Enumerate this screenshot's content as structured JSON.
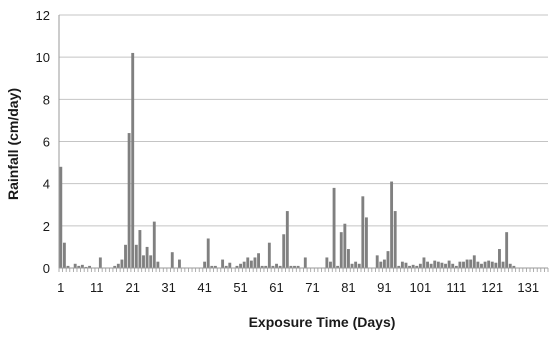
{
  "chart_data": {
    "type": "bar",
    "xlabel": "Exposure Time (Days)",
    "ylabel": "Rainfall (cm/day)",
    "ylim": [
      0,
      12
    ],
    "yticks": [
      0,
      2,
      4,
      6,
      8,
      10,
      12
    ],
    "xlim": [
      1,
      136
    ],
    "xticks": [
      1,
      11,
      21,
      31,
      41,
      51,
      61,
      71,
      81,
      91,
      101,
      111,
      121,
      131
    ],
    "grid": "horizontal",
    "bar_color": "#808080",
    "series": [
      {
        "x": [
          1,
          2,
          3,
          4,
          5,
          6,
          7,
          8,
          9,
          10,
          11,
          12,
          13,
          14,
          15,
          16,
          17,
          18,
          19,
          20,
          21,
          22,
          23,
          24,
          25,
          26,
          27,
          28,
          29,
          30,
          31,
          32,
          33,
          34,
          35,
          36,
          37,
          38,
          39,
          40,
          41,
          42,
          43,
          44,
          45,
          46,
          47,
          48,
          49,
          50,
          51,
          52,
          53,
          54,
          55,
          56,
          57,
          58,
          59,
          60,
          61,
          62,
          63,
          64,
          65,
          66,
          67,
          68,
          69,
          70,
          71,
          72,
          73,
          74,
          75,
          76,
          77,
          78,
          79,
          80,
          81,
          82,
          83,
          84,
          85,
          86,
          87,
          88,
          89,
          90,
          91,
          92,
          93,
          94,
          95,
          96,
          97,
          98,
          99,
          100,
          101,
          102,
          103,
          104,
          105,
          106,
          107,
          108,
          109,
          110,
          111,
          112,
          113,
          114,
          115,
          116,
          117,
          118,
          119,
          120,
          121,
          122,
          123,
          124,
          125,
          126,
          127,
          128,
          129,
          130,
          131,
          132,
          133,
          134,
          135,
          136
        ],
        "values": [
          4.8,
          1.2,
          0.1,
          0.0,
          0.2,
          0.1,
          0.15,
          0.05,
          0.1,
          0.0,
          0.0,
          0.5,
          0.0,
          0.0,
          0.0,
          0.1,
          0.2,
          0.4,
          1.1,
          6.4,
          10.2,
          1.1,
          1.8,
          0.6,
          1.0,
          0.6,
          2.2,
          0.3,
          0.0,
          0.0,
          0.0,
          0.75,
          0.0,
          0.4,
          0.0,
          0.0,
          0.0,
          0.0,
          0.0,
          0.0,
          0.3,
          1.4,
          0.1,
          0.1,
          0.0,
          0.4,
          0.1,
          0.25,
          0.0,
          0.1,
          0.2,
          0.3,
          0.5,
          0.35,
          0.5,
          0.7,
          0.1,
          0.1,
          1.2,
          0.1,
          0.2,
          0.1,
          1.6,
          2.7,
          0.1,
          0.1,
          0.1,
          0.0,
          0.5,
          0.0,
          0.0,
          0.0,
          0.0,
          0.0,
          0.5,
          0.3,
          3.8,
          0.1,
          1.7,
          2.1,
          0.9,
          0.2,
          0.3,
          0.2,
          3.4,
          2.4,
          0.0,
          0.0,
          0.6,
          0.3,
          0.4,
          0.8,
          4.1,
          2.7,
          0.1,
          0.3,
          0.25,
          0.1,
          0.15,
          0.1,
          0.2,
          0.5,
          0.3,
          0.2,
          0.35,
          0.3,
          0.25,
          0.2,
          0.35,
          0.2,
          0.1,
          0.3,
          0.3,
          0.4,
          0.4,
          0.6,
          0.3,
          0.2,
          0.3,
          0.35,
          0.3,
          0.25,
          0.9,
          0.3,
          1.7,
          0.2,
          0.1,
          0.0,
          0.0,
          0.0,
          0.0,
          0.0,
          0.0,
          0.0,
          0.0,
          0.0
        ]
      }
    ]
  }
}
